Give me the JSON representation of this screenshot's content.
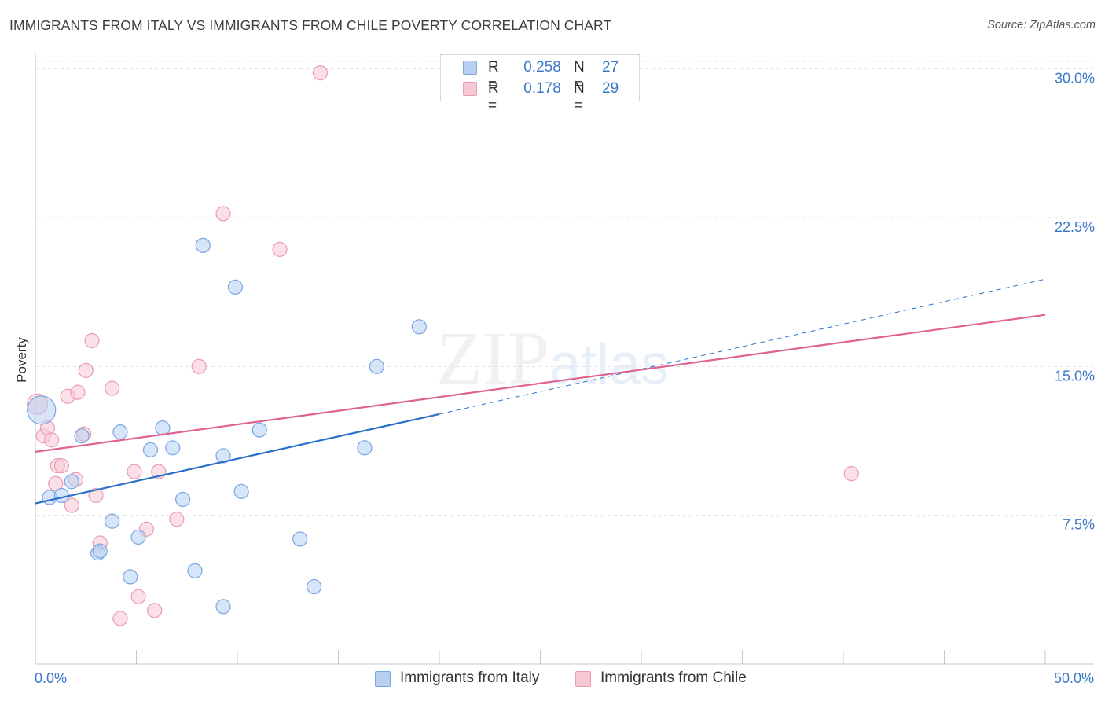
{
  "title": "IMMIGRANTS FROM ITALY VS IMMIGRANTS FROM CHILE POVERTY CORRELATION CHART",
  "source": "Source: ZipAtlas.com",
  "watermark": {
    "zip": "ZIP",
    "atlas": "atlas"
  },
  "colors": {
    "italy_fill": "#b7d0f2",
    "italy_stroke": "#7aa6e0",
    "italy_line": "#2a70c9",
    "chile_fill": "#f7c7d4",
    "chile_stroke": "#eb9bb2",
    "chile_line": "#e0628e",
    "value_text": "#3b78c8",
    "grid": "#e3e3e3"
  },
  "legend": {
    "italy": {
      "r_label": "R =",
      "r_value": "0.258",
      "n_label": "N =",
      "n_value": "27"
    },
    "chile": {
      "r_label": "R =",
      "r_value": "0.178",
      "n_label": "N =",
      "n_value": "29"
    }
  },
  "chart_data": {
    "type": "scatter",
    "title": "IMMIGRANTS FROM ITALY VS IMMIGRANTS FROM CHILE POVERTY CORRELATION CHART",
    "xlabel": "",
    "ylabel": "Poverty",
    "xlim": [
      0,
      50
    ],
    "ylim": [
      0,
      30.7
    ],
    "x_tick_labels": [
      "0.0%",
      "50.0%"
    ],
    "y_ticks": [
      7.5,
      15.0,
      22.5,
      30.0
    ],
    "y_tick_labels": [
      "7.5%",
      "15.0%",
      "22.5%",
      "30.0%"
    ],
    "grid": true,
    "series": [
      {
        "name": "Immigrants from Italy",
        "r": 0.258,
        "n": 27,
        "points": [
          [
            0.3,
            12.8,
            18
          ],
          [
            0.7,
            8.4,
            9
          ],
          [
            1.3,
            8.5,
            9
          ],
          [
            1.8,
            9.2,
            9
          ],
          [
            2.3,
            11.5,
            9
          ],
          [
            3.1,
            5.6,
            9
          ],
          [
            3.2,
            5.7,
            9
          ],
          [
            3.8,
            7.2,
            9
          ],
          [
            4.2,
            11.7,
            9
          ],
          [
            4.7,
            4.4,
            9
          ],
          [
            5.1,
            6.4,
            9
          ],
          [
            5.7,
            10.8,
            9
          ],
          [
            6.3,
            11.9,
            9
          ],
          [
            6.8,
            10.9,
            9
          ],
          [
            7.3,
            8.3,
            9
          ],
          [
            7.9,
            4.7,
            9
          ],
          [
            8.3,
            21.1,
            9
          ],
          [
            9.3,
            10.5,
            9
          ],
          [
            9.3,
            2.9,
            9
          ],
          [
            9.9,
            19.0,
            9
          ],
          [
            10.2,
            8.7,
            9
          ],
          [
            11.1,
            11.8,
            9
          ],
          [
            13.1,
            6.3,
            9
          ],
          [
            13.8,
            3.9,
            9
          ],
          [
            16.3,
            10.9,
            9
          ],
          [
            16.9,
            15.0,
            9
          ],
          [
            19.0,
            17.0,
            9
          ]
        ],
        "trend_solid": [
          [
            0,
            8.1
          ],
          [
            20,
            12.6
          ]
        ],
        "trend_dashed": [
          [
            20,
            12.6
          ],
          [
            50,
            19.4
          ]
        ]
      },
      {
        "name": "Immigrants from Chile",
        "r": 0.178,
        "n": 29,
        "points": [
          [
            0.1,
            13.1,
            13
          ],
          [
            0.4,
            11.5,
            9
          ],
          [
            0.6,
            11.9,
            9
          ],
          [
            0.8,
            11.3,
            9
          ],
          [
            1.0,
            9.1,
            9
          ],
          [
            1.1,
            10.0,
            9
          ],
          [
            1.3,
            10.0,
            9
          ],
          [
            1.6,
            13.5,
            9
          ],
          [
            1.8,
            8.0,
            9
          ],
          [
            2.0,
            9.3,
            9
          ],
          [
            2.1,
            13.7,
            9
          ],
          [
            2.4,
            11.6,
            9
          ],
          [
            2.5,
            14.8,
            9
          ],
          [
            2.8,
            16.3,
            9
          ],
          [
            3.0,
            8.5,
            9
          ],
          [
            3.2,
            6.1,
            9
          ],
          [
            3.8,
            13.9,
            9
          ],
          [
            4.2,
            2.3,
            9
          ],
          [
            4.9,
            9.7,
            9
          ],
          [
            5.1,
            3.4,
            9
          ],
          [
            5.5,
            6.8,
            9
          ],
          [
            5.9,
            2.7,
            9
          ],
          [
            6.1,
            9.7,
            9
          ],
          [
            7.0,
            7.3,
            9
          ],
          [
            8.1,
            15.0,
            9
          ],
          [
            9.3,
            22.7,
            9
          ],
          [
            12.1,
            20.9,
            9
          ],
          [
            14.1,
            29.8,
            9
          ],
          [
            40.4,
            9.6,
            9
          ]
        ],
        "trend_solid": [
          [
            0,
            10.7
          ],
          [
            50,
            17.6
          ]
        ]
      }
    ]
  },
  "bottom_legend": {
    "italy_label": "Immigrants from Italy",
    "chile_label": "Immigrants from Chile"
  }
}
